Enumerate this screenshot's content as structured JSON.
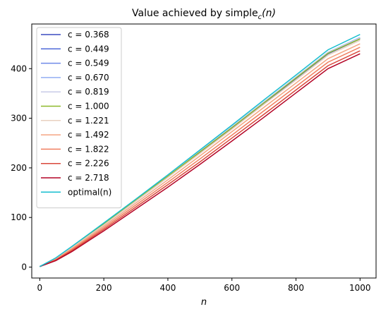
{
  "chart_data": {
    "type": "line",
    "title_prefix": "Value achieved by simple",
    "title_sub": "c",
    "title_suffix": "(n)",
    "xlabel": "n",
    "ylabel": "",
    "xlim": [
      -25,
      1050
    ],
    "ylim": [
      -22,
      490
    ],
    "xticks": [
      0,
      200,
      400,
      600,
      800,
      1000
    ],
    "yticks": [
      0,
      100,
      200,
      300,
      400
    ],
    "grid": false,
    "legend_position": "upper-left",
    "series": [
      {
        "name": "c = 0.368",
        "color": "#3b4cc0",
        "points": [
          [
            0,
            1
          ],
          [
            50,
            17
          ],
          [
            100,
            39
          ],
          [
            200,
            85
          ],
          [
            300,
            133
          ],
          [
            400,
            181
          ],
          [
            500,
            230
          ],
          [
            600,
            280
          ],
          [
            700,
            330
          ],
          [
            800,
            380
          ],
          [
            900,
            430
          ],
          [
            1000,
            460
          ]
        ]
      },
      {
        "name": "c = 0.449",
        "color": "#4f69d9",
        "points": [
          [
            0,
            1
          ],
          [
            50,
            17.5
          ],
          [
            100,
            39.5
          ],
          [
            200,
            86
          ],
          [
            300,
            134
          ],
          [
            400,
            182
          ],
          [
            500,
            231
          ],
          [
            600,
            281
          ],
          [
            700,
            331
          ],
          [
            800,
            381
          ],
          [
            900,
            431
          ],
          [
            1000,
            461
          ]
        ]
      },
      {
        "name": "c = 0.549",
        "color": "#6f8ae8",
        "points": [
          [
            0,
            1
          ],
          [
            50,
            18
          ],
          [
            100,
            40
          ],
          [
            200,
            87
          ],
          [
            300,
            135
          ],
          [
            400,
            183
          ],
          [
            500,
            232
          ],
          [
            600,
            282
          ],
          [
            700,
            332
          ],
          [
            800,
            382
          ],
          [
            900,
            432
          ],
          [
            1000,
            462
          ]
        ]
      },
      {
        "name": "c = 0.670",
        "color": "#93aef2",
        "points": [
          [
            0,
            1
          ],
          [
            50,
            18
          ],
          [
            100,
            40.5
          ],
          [
            200,
            87.5
          ],
          [
            300,
            135.5
          ],
          [
            400,
            184
          ],
          [
            500,
            233
          ],
          [
            600,
            283
          ],
          [
            700,
            333
          ],
          [
            800,
            383
          ],
          [
            900,
            433
          ],
          [
            1000,
            463
          ]
        ]
      },
      {
        "name": "c = 0.819",
        "color": "#c8cbe8",
        "points": [
          [
            0,
            1
          ],
          [
            50,
            18
          ],
          [
            100,
            40.5
          ],
          [
            200,
            87.5
          ],
          [
            300,
            135.5
          ],
          [
            400,
            184
          ],
          [
            500,
            233
          ],
          [
            600,
            283
          ],
          [
            700,
            333
          ],
          [
            800,
            383
          ],
          [
            900,
            433
          ],
          [
            1000,
            462
          ]
        ]
      },
      {
        "name": "c = 1.000",
        "color": "#8db82a",
        "points": [
          [
            0,
            1
          ],
          [
            50,
            17.5
          ],
          [
            100,
            40
          ],
          [
            200,
            87
          ],
          [
            300,
            135
          ],
          [
            400,
            183
          ],
          [
            500,
            232
          ],
          [
            600,
            281
          ],
          [
            700,
            331
          ],
          [
            800,
            381
          ],
          [
            900,
            431
          ],
          [
            1000,
            460
          ]
        ]
      },
      {
        "name": "c = 1.221",
        "color": "#e8d0c0",
        "points": [
          [
            0,
            1
          ],
          [
            50,
            17
          ],
          [
            100,
            39
          ],
          [
            200,
            85
          ],
          [
            300,
            133
          ],
          [
            400,
            181
          ],
          [
            500,
            229
          ],
          [
            600,
            278
          ],
          [
            700,
            328
          ],
          [
            800,
            377
          ],
          [
            900,
            427
          ],
          [
            1000,
            457
          ]
        ]
      },
      {
        "name": "c = 1.492",
        "color": "#f4a582",
        "points": [
          [
            0,
            1
          ],
          [
            50,
            16
          ],
          [
            100,
            37
          ],
          [
            200,
            82
          ],
          [
            300,
            129
          ],
          [
            400,
            176
          ],
          [
            500,
            224
          ],
          [
            600,
            273
          ],
          [
            700,
            322
          ],
          [
            800,
            371
          ],
          [
            900,
            420
          ],
          [
            1000,
            450
          ]
        ]
      },
      {
        "name": "c = 1.822",
        "color": "#f07f60",
        "points": [
          [
            0,
            1
          ],
          [
            50,
            15
          ],
          [
            100,
            35
          ],
          [
            200,
            79
          ],
          [
            300,
            125
          ],
          [
            400,
            171
          ],
          [
            500,
            218
          ],
          [
            600,
            266
          ],
          [
            700,
            315
          ],
          [
            800,
            364
          ],
          [
            900,
            413
          ],
          [
            1000,
            443
          ]
        ]
      },
      {
        "name": "c = 2.226",
        "color": "#d9483b",
        "points": [
          [
            0,
            1
          ],
          [
            50,
            14
          ],
          [
            100,
            33
          ],
          [
            200,
            76
          ],
          [
            300,
            121
          ],
          [
            400,
            166
          ],
          [
            500,
            212
          ],
          [
            600,
            260
          ],
          [
            700,
            308
          ],
          [
            800,
            357
          ],
          [
            900,
            406
          ],
          [
            1000,
            436
          ]
        ]
      },
      {
        "name": "c = 2.718",
        "color": "#b40426",
        "points": [
          [
            0,
            1
          ],
          [
            50,
            13
          ],
          [
            100,
            31
          ],
          [
            200,
            73
          ],
          [
            300,
            117
          ],
          [
            400,
            161
          ],
          [
            500,
            207
          ],
          [
            600,
            254
          ],
          [
            700,
            302
          ],
          [
            800,
            351
          ],
          [
            900,
            400
          ],
          [
            1000,
            430
          ]
        ]
      },
      {
        "name": "optimal(n)",
        "color": "#17becf",
        "points": [
          [
            0,
            1
          ],
          [
            50,
            18.5
          ],
          [
            100,
            41.5
          ],
          [
            200,
            89
          ],
          [
            300,
            137
          ],
          [
            400,
            186
          ],
          [
            500,
            236
          ],
          [
            600,
            286
          ],
          [
            700,
            337
          ],
          [
            800,
            387
          ],
          [
            900,
            438
          ],
          [
            1000,
            469
          ]
        ]
      }
    ]
  }
}
